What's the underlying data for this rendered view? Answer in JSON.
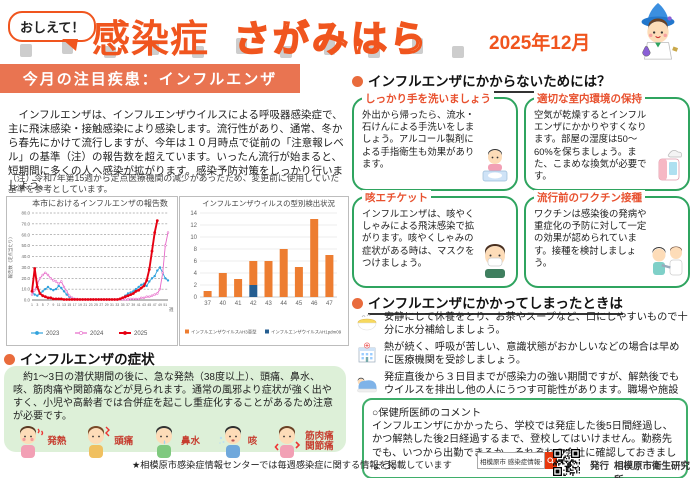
{
  "header": {
    "bubble": "おしえて！",
    "title_main": "感染症",
    "title_sub": "さがみはら",
    "date": "2025年12月",
    "mascot_icon": "sagamin-mascot-icon"
  },
  "left": {
    "section_title": "今月の注目疾患：インフルエンザ",
    "intro": "　インフルエンザは、インフルエンザウイルスによる呼吸器感染症で、主に飛沫感染・接触感染により感染します。流行性があり、通常、冬から春先にかけて流行しますが、今年は１０月時点で従前の「注意報レベル」の基準（注）の報告数を超えています。いったん流行が始まると、短期間に多くの人へ感染が拡がります。感染予防対策をしっかり行いましょう。",
    "note": "（注）令和7年第15週から定点医療機関の減少があったため、変更前に使用していた基準を参考としています。",
    "symptoms": {
      "heading": "インフルエンザの症状",
      "body": "　約1～3日の潜伏期間の後に、急な発熱（38度以上）、頭痛、鼻水、咳、筋肉痛や関節痛などが見られます。通常の風邪より症状が強く出やすく、小児や高齢者では合併症を起こし重症化することがあるため注意が必要です。",
      "labels": [
        "発熱",
        "頭痛",
        "鼻水",
        "咳",
        "筋肉痛\n関節痛"
      ],
      "figure_icons": [
        "fever-person-icon",
        "headache-person-icon",
        "runny-nose-person-icon",
        "cough-person-icon",
        "muscle-pain-person-icon"
      ]
    }
  },
  "right": {
    "prevent_heading": "インフルエンザにかからないためには？",
    "boxes": [
      {
        "title": "しっかり手を洗いましょう",
        "body": "外出から帰ったら、流水・石けんによる手洗いをしましょう。アルコール製剤による手指衛生も効果があります。",
        "icon": "handwashing-icon"
      },
      {
        "title": "適切な室内環境の保持",
        "body": "空気が乾燥するとインフルエンザにかかりやすくなります。部屋の湿度は50～60%を保ちましょう。また、こまめな換気が必要です。",
        "icon": "humidifier-icon"
      },
      {
        "title": "咳エチケット",
        "body": "インフルエンザは、咳やくしゃみによる飛沫感染で拡がります。咳やくしゃみの症状がある時は、マスクをつけましょう。",
        "icon": "mask-boy-icon"
      },
      {
        "title": "流行前のワクチン接種",
        "body": "ワクチンは感染後の発病や重症化の予防に対して一定の効果が認められています。接種を検討しましょう。",
        "icon": "vaccination-icon"
      }
    ],
    "sick_heading": "インフルエンザにかかってしまったときは",
    "sick_items": [
      {
        "icon": "soup-icon",
        "text": "安静にして休養をとり、お茶やスープなど、口にしやすいもので十分に水分補給しましょう。"
      },
      {
        "icon": "hospital-icon",
        "text": "熱が続く、呼吸が苦しい、意識状態がおかしいなどの場合は早めに医療機関を受診しましょう。"
      },
      {
        "icon": "resting-person-icon",
        "text": "発症直後から３日目までが感染力の強い期間ですが、解熱後でもウイルスを排出し他の人にうつす可能性があります。職場や施設等で感染を広げないよう自宅療養をしましょう。"
      }
    ],
    "comment_box": {
      "title": "○保健所医師のコメント",
      "body": "インフルエンザにかかったら、学校では発症した後5日間経過し、かつ解熱した後2日経過するまで、登校してはいけません。勤務先でも、いつから出勤できるか、それぞれの会社に確認しておきましょう。"
    }
  },
  "footer": {
    "info_text": "★相模原市感染症情報センターでは毎週感染症に関する情報を掲載しています",
    "search_value": "相模原市 感染症情報センター",
    "search_button_icon": "magnifier-icon",
    "qr_icon": "qr-code",
    "publisher_label": "発行",
    "publisher": "相模原市衛生研究所"
  },
  "colors": {
    "accent_orange": "#F0551E",
    "section_bar": "#E97451",
    "box_border_green": "#2FA45F",
    "symptom_bg_green": "#DDF0D8",
    "box_title_red": "#E8512F",
    "search_button_red": "#E8380D",
    "line_2023": "#31A2DC",
    "line_2024": "#E668C8",
    "line_2025": "#E60012",
    "bar_ah3": "#ED7D31",
    "bar_ah1pdm09": "#255E91"
  },
  "chart_data": [
    {
      "type": "line",
      "title": "本市におけるインフルエンザの報告数",
      "xlabel": "週",
      "ylabel": "報告数（定点当たり）",
      "ylim": [
        0,
        80
      ],
      "ytick_step": 10,
      "grid": true,
      "legend_position": "bottom",
      "x": [
        1,
        2,
        3,
        4,
        5,
        6,
        7,
        8,
        9,
        10,
        11,
        12,
        13,
        14,
        15,
        16,
        17,
        18,
        19,
        20,
        21,
        22,
        23,
        24,
        25,
        26,
        27,
        28,
        29,
        30,
        31,
        32,
        33,
        34,
        35,
        36,
        37,
        38,
        39,
        40,
        41,
        42,
        43,
        44,
        45,
        46,
        47,
        48,
        49,
        50,
        51,
        52
      ],
      "series": [
        {
          "name": "2023",
          "color": "#31A2DC",
          "values": [
            8,
            5,
            4,
            6,
            8,
            10,
            12,
            10,
            9,
            10,
            13,
            11,
            8,
            5,
            3,
            2,
            1,
            0.5,
            0.5,
            0.5,
            0.5,
            0.5,
            0.5,
            0.5,
            0.5,
            0.5,
            0.5,
            0.5,
            0.5,
            0.5,
            0.5,
            0.5,
            0.5,
            1,
            2,
            4,
            6,
            7,
            8,
            10,
            12,
            14,
            15,
            13,
            17,
            20,
            22,
            27,
            30,
            25,
            20,
            18
          ]
        },
        {
          "name": "2024",
          "color": "#E668C8",
          "values": [
            5,
            9,
            15,
            20,
            23,
            25,
            23,
            20,
            18,
            17,
            15,
            17,
            12,
            8,
            4,
            2,
            1,
            1,
            0.5,
            0.5,
            0.5,
            0.5,
            0.5,
            0.5,
            0.5,
            0.5,
            0.5,
            0.5,
            0.5,
            0.5,
            0.5,
            0.5,
            0.5,
            0.5,
            0.5,
            0.5,
            0.5,
            1,
            1,
            1,
            1,
            2,
            2,
            3,
            3,
            4,
            5,
            6,
            10,
            25,
            50,
            62
          ]
        },
        {
          "name": "2025",
          "color": "#E60012",
          "values": [
            8,
            29,
            12,
            6,
            4,
            3,
            2,
            2,
            1,
            1,
            1,
            1,
            0.5,
            0.5,
            0.5,
            0.5,
            0.5,
            0.5,
            0.5,
            0.5,
            0.5,
            0.5,
            0.5,
            0.5,
            0.5,
            0.5,
            0.5,
            0.5,
            0.5,
            0.5,
            0.5,
            0.5,
            0.5,
            1,
            2,
            3,
            4,
            5,
            6,
            8,
            9,
            11,
            13,
            18,
            28,
            45,
            62,
            73,
            null,
            null,
            null,
            null
          ]
        }
      ]
    },
    {
      "type": "bar",
      "stacked": true,
      "title": "インフルエンザウイルスの型別検出状況",
      "categories": [
        "37",
        "40",
        "41",
        "42",
        "43",
        "44",
        "45",
        "46",
        "47"
      ],
      "series": [
        {
          "name": "インフルエンザウイルスAH3亜型",
          "color": "#ED7D31",
          "values": [
            1,
            4,
            3,
            4,
            6,
            8,
            5,
            13,
            7
          ]
        },
        {
          "name": "インフルエンザウイルスAH1pdm09",
          "color": "#255E91",
          "values": [
            0,
            0,
            0,
            2,
            0,
            0,
            0,
            0,
            0
          ]
        }
      ],
      "ylim": [
        0,
        14
      ],
      "ytick_step": 2,
      "legend_position": "bottom"
    }
  ]
}
